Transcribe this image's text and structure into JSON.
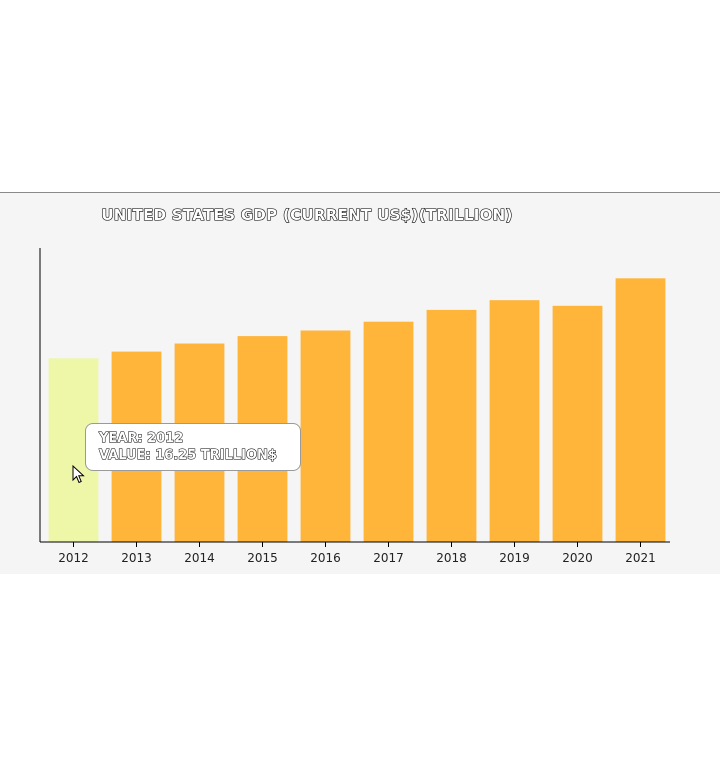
{
  "chart_data": {
    "type": "bar",
    "title": "UNITED STATES GDP (CURRENT US$)(TRILLION)",
    "xlabel": "",
    "ylabel": "",
    "categories": [
      "2012",
      "2013",
      "2014",
      "2015",
      "2016",
      "2017",
      "2018",
      "2019",
      "2020",
      "2021"
    ],
    "values": [
      16.25,
      16.84,
      17.55,
      18.21,
      18.7,
      19.48,
      20.53,
      21.38,
      20.89,
      23.32
    ],
    "ylim": [
      0,
      26
    ],
    "y_ticks_shown": false,
    "grid": false,
    "legend": "none",
    "bar_color": "#ffb43a",
    "highlight_color": "#eef7a8",
    "highlighted_category": "2012"
  },
  "tooltip": {
    "year_line": "YEAR: 2012",
    "value_line": "VALUE: 16.25 TRILLION$"
  },
  "cursor": {
    "icon": "pointer-arrow-icon"
  }
}
